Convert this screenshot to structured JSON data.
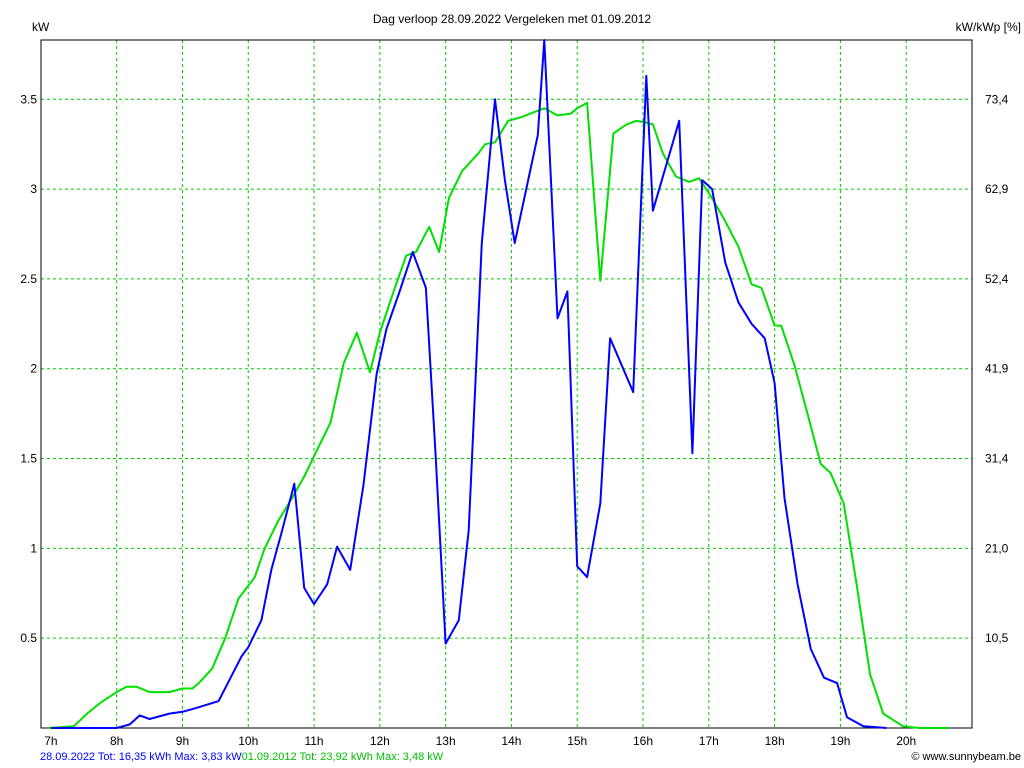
{
  "chart_data": {
    "type": "line",
    "title": "Dag  verloop 28.09.2022   Vergeleken met 01.09.2012",
    "ylabel_left": "kW",
    "ylabel_right": "kW/kWp [%]",
    "x_ticks": [
      "7h",
      "8h",
      "9h",
      "10h",
      "11h",
      "12h",
      "13h",
      "14h",
      "15h",
      "16h",
      "17h",
      "18h",
      "19h",
      "20h"
    ],
    "y_ticks_left": [
      "0.5",
      "1",
      "1.5",
      "2",
      "2.5",
      "3",
      "3.5"
    ],
    "y_ticks_right": [
      "10,5",
      "21,0",
      "31,4",
      "41,9",
      "52,4",
      "62,9",
      "73,4"
    ],
    "xlim": [
      6.85,
      21.0
    ],
    "ylim": [
      0,
      3.83
    ],
    "grid": true,
    "series": [
      {
        "name": "28.09.2022",
        "color": "#0000ff",
        "x": [
          7.0,
          8.0,
          8.2,
          8.35,
          8.5,
          8.8,
          9.0,
          9.2,
          9.55,
          9.9,
          10.0,
          10.2,
          10.35,
          10.5,
          10.7,
          10.85,
          11.0,
          11.2,
          11.35,
          11.55,
          11.75,
          11.95,
          12.1,
          12.3,
          12.5,
          12.7,
          12.85,
          13.0,
          13.2,
          13.35,
          13.55,
          13.75,
          13.9,
          14.05,
          14.4,
          14.5,
          14.7,
          14.85,
          15.0,
          15.15,
          15.35,
          15.5,
          15.85,
          16.05,
          16.15,
          16.55,
          16.75,
          16.9,
          17.05,
          17.25,
          17.45,
          17.65,
          17.85,
          18.0,
          18.15,
          18.35,
          18.55,
          18.75,
          18.95,
          19.1,
          19.35,
          19.7
        ],
        "y": [
          0,
          0,
          0.02,
          0.07,
          0.05,
          0.08,
          0.09,
          0.11,
          0.15,
          0.4,
          0.45,
          0.6,
          0.88,
          1.08,
          1.36,
          0.78,
          0.69,
          0.8,
          1.01,
          0.88,
          1.35,
          1.97,
          2.22,
          2.43,
          2.65,
          2.45,
          1.5,
          0.47,
          0.6,
          1.1,
          2.7,
          3.5,
          3.05,
          2.7,
          3.3,
          3.83,
          2.28,
          2.43,
          0.9,
          0.84,
          1.25,
          2.17,
          1.87,
          3.63,
          2.88,
          3.38,
          1.53,
          3.05,
          3.0,
          2.59,
          2.37,
          2.25,
          2.17,
          1.92,
          1.28,
          0.8,
          0.44,
          0.28,
          0.25,
          0.06,
          0.01,
          0
        ]
      },
      {
        "name": "01.09.2012",
        "color": "#00e000",
        "x": [
          6.95,
          7.35,
          7.55,
          7.75,
          8.0,
          8.15,
          8.3,
          8.5,
          8.8,
          9.0,
          9.15,
          9.25,
          9.45,
          9.65,
          9.85,
          10.1,
          10.25,
          10.45,
          10.65,
          10.85,
          11.05,
          11.25,
          11.45,
          11.65,
          11.85,
          12.0,
          12.2,
          12.4,
          12.55,
          12.75,
          12.9,
          13.05,
          13.25,
          13.5,
          13.6,
          13.75,
          13.95,
          14.15,
          14.35,
          14.5,
          14.7,
          14.9,
          15.0,
          15.15,
          15.35,
          15.55,
          15.75,
          15.9,
          16.05,
          16.15,
          16.3,
          16.5,
          16.7,
          16.85,
          17.05,
          17.25,
          17.45,
          17.65,
          17.8,
          18.0,
          18.1,
          18.3,
          18.5,
          18.7,
          18.85,
          19.05,
          19.25,
          19.45,
          19.65,
          19.95,
          20.2,
          20.65
        ],
        "y": [
          0,
          0.01,
          0.08,
          0.14,
          0.2,
          0.23,
          0.23,
          0.2,
          0.2,
          0.22,
          0.22,
          0.25,
          0.33,
          0.5,
          0.72,
          0.84,
          1.0,
          1.15,
          1.27,
          1.4,
          1.55,
          1.7,
          2.03,
          2.2,
          1.98,
          2.2,
          2.42,
          2.63,
          2.65,
          2.79,
          2.65,
          2.95,
          3.1,
          3.2,
          3.25,
          3.26,
          3.38,
          3.4,
          3.43,
          3.45,
          3.41,
          3.42,
          3.45,
          3.48,
          2.49,
          3.31,
          3.36,
          3.38,
          3.37,
          3.36,
          3.2,
          3.07,
          3.04,
          3.06,
          2.95,
          2.82,
          2.68,
          2.47,
          2.45,
          2.24,
          2.24,
          2.02,
          1.75,
          1.47,
          1.42,
          1.25,
          0.79,
          0.3,
          0.08,
          0.01,
          0,
          0
        ]
      }
    ]
  },
  "footer": {
    "summary_2022": "28.09.2022 Tot: 16,35 kWh Max: 3,83 kW",
    "summary_2012": "01.09.2012 Tot: 23,92 kWh Max: 3,48 kW",
    "credit": "© www.sunnybeam.be"
  }
}
